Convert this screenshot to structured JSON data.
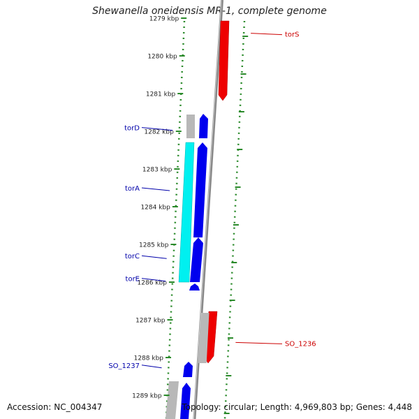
{
  "title": "Shewanella oneidensis MR-1, complete genome",
  "footer": {
    "accession": "Accession: NC_004347",
    "summary": "Topology: circular; Length: 4,969,803 bp; Genes: 4,448"
  },
  "colors": {
    "backbone": "#888888",
    "dots": "#2a8a2a",
    "forward_gene": "#0000ee",
    "forward_gene_light": "#00f0f0",
    "reverse_gene": "#ee0000",
    "other_feature": "#b8b8b8",
    "forward_label": "#0000aa",
    "reverse_label": "#cc0000"
  },
  "map": {
    "start_kbp": 1279,
    "end_kbp": 1289.2,
    "ticks": [
      "1279 kbp",
      "1280 kbp",
      "1281 kbp",
      "1282 kbp",
      "1283 kbp",
      "1284 kbp",
      "1285 kbp",
      "1286 kbp",
      "1287 kbp",
      "1288 kbp",
      "1289 kbp"
    ],
    "tick_values": [
      1279,
      1280,
      1281,
      1282,
      1283,
      1284,
      1285,
      1286,
      1287,
      1288,
      1289
    ],
    "labels": [
      {
        "text": "torD",
        "side": "left",
        "kbp": 1281.9
      },
      {
        "text": "torA",
        "side": "left",
        "kbp": 1283.5
      },
      {
        "text": "torC",
        "side": "left",
        "kbp": 1285.3
      },
      {
        "text": "torE",
        "side": "left",
        "kbp": 1285.9
      },
      {
        "text": "SO_1237",
        "side": "left",
        "kbp": 1288.2
      },
      {
        "text": "torS",
        "side": "right",
        "kbp": 1279.4
      },
      {
        "text": "SO_1236",
        "side": "right",
        "kbp": 1287.6
      }
    ]
  }
}
